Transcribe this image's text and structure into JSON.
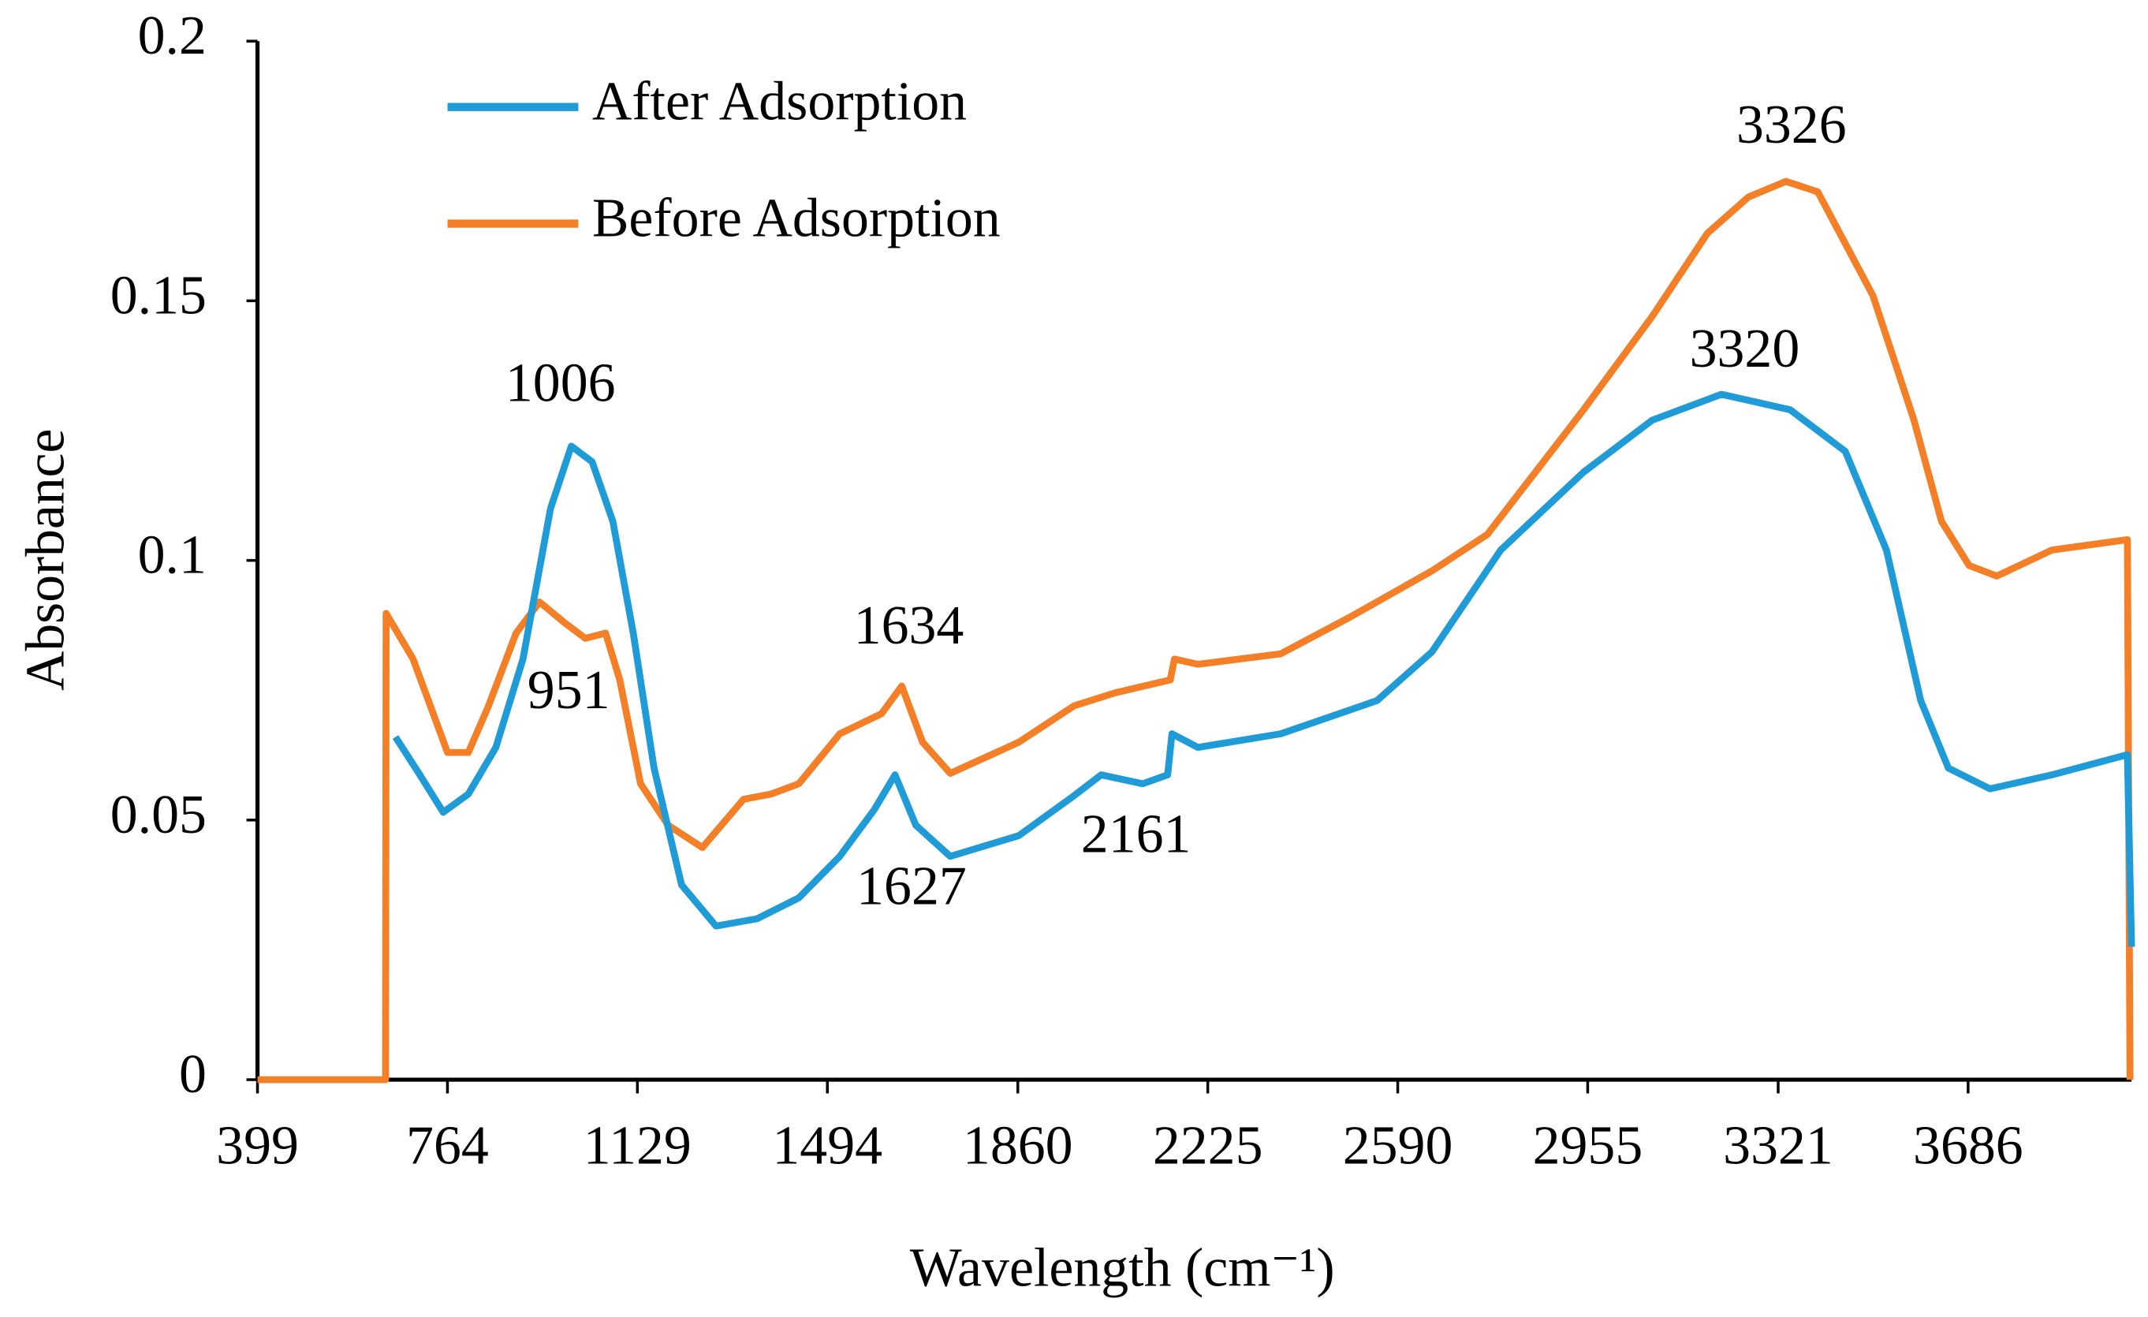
{
  "chart_data": {
    "type": "line",
    "xlabel": "Wavelength (cm⁻¹)",
    "ylabel": "Absorbance",
    "xlim": [
      399,
      4000
    ],
    "xticks": [
      399,
      764,
      1129,
      1494,
      1860,
      2225,
      2590,
      2955,
      3321,
      3686
    ],
    "ylim": [
      0,
      0.2
    ],
    "yticks": [
      0,
      0.05,
      0.1,
      0.15,
      0.2
    ],
    "grid": false,
    "legend": "upper left",
    "annotations": [
      "1006",
      "951",
      "1634",
      "1627",
      "2161",
      "3320",
      "3326"
    ],
    "series": [
      {
        "name": "After Adsorption",
        "color": "#1f9bd7",
        "x": [
          664,
          711,
          756,
          804,
          857,
          909,
          962,
          1002,
          1042,
          1082,
          1121,
          1161,
          1214,
          1280,
          1359,
          1439,
          1518,
          1584,
          1624,
          1664,
          1730,
          1862,
          1968,
          2020,
          2100,
          2148,
          2156,
          2206,
          2365,
          2550,
          2656,
          2788,
          2947,
          3079,
          3212,
          3344,
          3450,
          3529,
          3595,
          3648,
          3728,
          3847,
          3992,
          4000
        ],
        "values": [
          0.066,
          0.0587,
          0.0515,
          0.055,
          0.064,
          0.081,
          0.11,
          0.122,
          0.119,
          0.1075,
          0.086,
          0.06,
          0.0375,
          0.0296,
          0.031,
          0.035,
          0.043,
          0.052,
          0.0587,
          0.049,
          0.043,
          0.047,
          0.0547,
          0.0587,
          0.057,
          0.0587,
          0.0666,
          0.064,
          0.0666,
          0.073,
          0.0824,
          0.102,
          0.117,
          0.127,
          0.132,
          0.129,
          0.121,
          0.102,
          0.073,
          0.06,
          0.056,
          0.0587,
          0.0626,
          0.0256
        ]
      },
      {
        "name": "Before Adsorption",
        "color": "#f47f26",
        "x": [
          399,
          645,
          646,
          698,
          764,
          804,
          843,
          896,
          941,
          989,
          1029,
          1068,
          1095,
          1135,
          1188,
          1254,
          1333,
          1386,
          1439,
          1518,
          1598,
          1637,
          1677,
          1730,
          1862,
          1968,
          2047,
          2153,
          2161,
          2206,
          2365,
          2497,
          2656,
          2762,
          2947,
          3079,
          3185,
          3264,
          3336,
          3397,
          3503,
          3582,
          3635,
          3688,
          3741,
          3847,
          3992,
          3997
        ],
        "values": [
          0,
          0,
          0.0898,
          0.081,
          0.063,
          0.063,
          0.072,
          0.086,
          0.092,
          0.088,
          0.085,
          0.086,
          0.077,
          0.057,
          0.049,
          0.0447,
          0.054,
          0.055,
          0.057,
          0.0666,
          0.0705,
          0.0758,
          0.065,
          0.059,
          0.065,
          0.072,
          0.0745,
          0.077,
          0.081,
          0.08,
          0.082,
          0.089,
          0.098,
          0.105,
          0.129,
          0.147,
          0.163,
          0.17,
          0.173,
          0.171,
          0.151,
          0.127,
          0.1075,
          0.099,
          0.097,
          0.102,
          0.104,
          0
        ]
      }
    ]
  }
}
